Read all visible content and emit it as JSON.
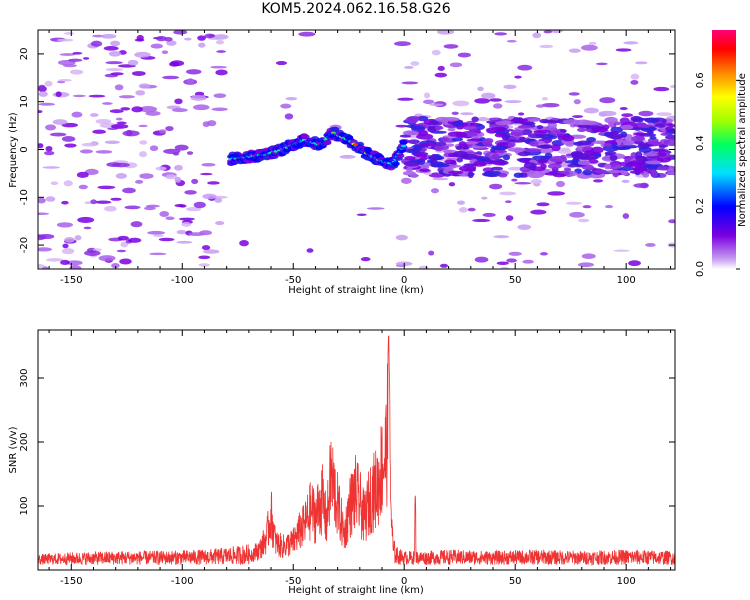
{
  "title": "KOM5.2024.062.16.58.G26",
  "spectrogram": {
    "xlabel": "Height of straight line (km)",
    "ylabel": "Frequency (Hz)",
    "xlim": [
      -165,
      122
    ],
    "ylim": [
      -25,
      25
    ],
    "xticks": [
      -150,
      -100,
      -50,
      0,
      50,
      100
    ],
    "yticks": [
      -20,
      -10,
      0,
      10,
      20
    ]
  },
  "colorbar": {
    "label": "Normalized spectral amplitude",
    "ylim": [
      0,
      0.76
    ],
    "ticks": [
      0.0,
      0.2,
      0.4,
      0.6
    ],
    "tick_labels": [
      "0.0",
      "0.2",
      "0.4",
      "0.6"
    ]
  },
  "snr_plot": {
    "xlabel": "Height of straight line (km)",
    "ylabel": "SNR (v/v)",
    "xlim": [
      -165,
      122
    ],
    "ylim": [
      0,
      375
    ],
    "xticks": [
      -150,
      -100,
      -50,
      0,
      50,
      100
    ],
    "yticks": [
      100,
      200,
      300
    ],
    "line_color": "#ee3333"
  },
  "chart_data": [
    {
      "type": "heatmap",
      "xlabel": "Height of straight line (km)",
      "ylabel": "Frequency (Hz)",
      "colorbar_label": "Normalized spectral amplitude",
      "x_range": [
        -165,
        122
      ],
      "y_range": [
        -25,
        25
      ],
      "colormap": "rainbow (white at 0, purple, blue, cyan, green, yellow, orange, red, magenta at 0.76)",
      "signal_track": {
        "description_points": [
          {
            "x": -78,
            "y": -2
          },
          {
            "x": -62,
            "y": -1
          },
          {
            "x": -55,
            "y": 0
          },
          {
            "x": -45,
            "y": 2
          },
          {
            "x": -38,
            "y": 1
          },
          {
            "x": -32,
            "y": 3.5
          },
          {
            "x": -25,
            "y": 2
          },
          {
            "x": -18,
            "y": -0.5
          },
          {
            "x": -10,
            "y": -2.5
          },
          {
            "x": -5,
            "y": -3
          },
          {
            "x": 0,
            "y": 1
          }
        ],
        "peak_amplitude": 0.76
      },
      "background_noise_amplitude": 0.15
    },
    {
      "type": "line",
      "xlabel": "Height of straight line (km)",
      "ylabel": "SNR (v/v)",
      "x_range": [
        -165,
        122
      ],
      "ylim": [
        0,
        375
      ],
      "series": [
        {
          "x": [
            -165,
            -150,
            -130,
            -110,
            -90,
            -80,
            -70,
            -65,
            -62,
            -60,
            -58,
            -55,
            -50,
            -47,
            -45,
            -42,
            -40,
            -37,
            -35,
            -33,
            -30,
            -27,
            -25,
            -22,
            -20,
            -18,
            -15,
            -12,
            -10,
            -8,
            -7,
            -6,
            -5,
            -3,
            0,
            5,
            10,
            20,
            40,
            60,
            80,
            100,
            122
          ],
          "y": [
            15,
            18,
            20,
            20,
            22,
            25,
            30,
            45,
            70,
            120,
            60,
            50,
            60,
            85,
            95,
            130,
            115,
            155,
            100,
            205,
            140,
            75,
            130,
            165,
            145,
            110,
            160,
            180,
            225,
            255,
            375,
            140,
            40,
            25,
            20,
            20,
            20,
            22,
            20,
            22,
            20,
            22,
            20
          ],
          "note": "noisy line; also a spike near x=5 reaching ~130"
        }
      ]
    }
  ]
}
